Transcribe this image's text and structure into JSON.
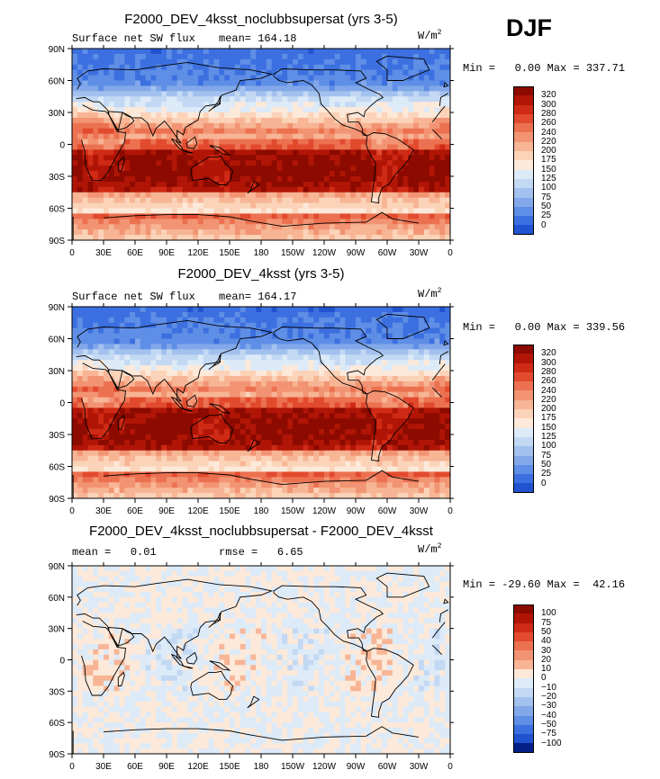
{
  "season": "DJF",
  "colors": {
    "pos": [
      "#fde9d9",
      "#fbd3b8",
      "#f7b595",
      "#f29473",
      "#ec7150",
      "#e24a2e",
      "#cf2a15",
      "#b01506",
      "#8c0a00"
    ],
    "neg": [
      "#ddeaf8",
      "#c2d8f3",
      "#a3c1ee",
      "#82a8ea",
      "#5f8ee6",
      "#3c70e0",
      "#2153d1",
      "#1039b0",
      "#06208a"
    ],
    "coast": "#000000"
  },
  "chart_data": [
    {
      "type": "heatmap",
      "title": "F2000_DEV_4ksst_noclubbsupersat (yrs 3-5)",
      "field": "Surface net SW flux",
      "stat_label": "mean=",
      "stat_value": "164.18",
      "units": "W/m",
      "units_exp": "2",
      "min_label": "Min =",
      "min": "0.00",
      "max_label": "Max =",
      "max": "337.71",
      "xticks": [
        "0",
        "30E",
        "60E",
        "90E",
        "120E",
        "150E",
        "180",
        "150W",
        "120W",
        "90W",
        "60W",
        "30W",
        "0"
      ],
      "yticks": [
        "90N",
        "60N",
        "30N",
        "0",
        "30S",
        "60S",
        "90S"
      ],
      "cbar_levels": [
        "320",
        "300",
        "280",
        "260",
        "240",
        "220",
        "200",
        "175",
        "150",
        "125",
        "100",
        "75",
        "50",
        "25",
        "0"
      ],
      "cbar_colors": [
        "#8c0a00",
        "#b01506",
        "#cf2a15",
        "#e24a2e",
        "#ec7150",
        "#f29473",
        "#f7b595",
        "#fbd3b8",
        "#fde9d9",
        "#ddeaf8",
        "#c2d8f3",
        "#a3c1ee",
        "#82a8ea",
        "#5f8ee6",
        "#3c70e0",
        "#2153d1"
      ],
      "field_kind": "sw",
      "seed": 1
    },
    {
      "type": "heatmap",
      "title": "F2000_DEV_4ksst (yrs 3-5)",
      "field": "Surface net SW flux",
      "stat_label": "mean=",
      "stat_value": "164.17",
      "units": "W/m",
      "units_exp": "2",
      "min_label": "Min =",
      "min": "0.00",
      "max_label": "Max =",
      "max": "339.56",
      "xticks": [
        "0",
        "30E",
        "60E",
        "90E",
        "120E",
        "150E",
        "180",
        "150W",
        "120W",
        "90W",
        "60W",
        "30W",
        "0"
      ],
      "yticks": [
        "90N",
        "60N",
        "30N",
        "0",
        "30S",
        "60S",
        "90S"
      ],
      "cbar_levels": [
        "320",
        "300",
        "280",
        "260",
        "240",
        "220",
        "200",
        "175",
        "150",
        "125",
        "100",
        "75",
        "50",
        "25",
        "0"
      ],
      "cbar_colors": [
        "#8c0a00",
        "#b01506",
        "#cf2a15",
        "#e24a2e",
        "#ec7150",
        "#f29473",
        "#f7b595",
        "#fbd3b8",
        "#fde9d9",
        "#ddeaf8",
        "#c2d8f3",
        "#a3c1ee",
        "#82a8ea",
        "#5f8ee6",
        "#3c70e0",
        "#2153d1"
      ],
      "field_kind": "sw",
      "seed": 2
    },
    {
      "type": "heatmap",
      "title": "F2000_DEV_4ksst_noclubbsupersat - F2000_DEV_4ksst",
      "field": "",
      "stat_label": "mean =",
      "stat_value": "0.01",
      "rmse_label": "rmse =",
      "rmse_value": "6.65",
      "units": "W/m",
      "units_exp": "2",
      "min_label": "Min =",
      "min": "-29.60",
      "max_label": "Max =",
      "max": "42.16",
      "xticks": [
        "0",
        "30E",
        "60E",
        "90E",
        "120E",
        "150E",
        "180",
        "150W",
        "120W",
        "90W",
        "60W",
        "30W",
        "0"
      ],
      "yticks": [
        "90N",
        "60N",
        "30N",
        "0",
        "30S",
        "60S",
        "90S"
      ],
      "cbar_levels": [
        "100",
        "75",
        "50",
        "40",
        "30",
        "20",
        "10",
        "0",
        "−10",
        "−20",
        "−30",
        "−40",
        "−50",
        "−75",
        "−100"
      ],
      "cbar_colors": [
        "#8c0a00",
        "#b01506",
        "#cf2a15",
        "#e24a2e",
        "#ec7150",
        "#f29473",
        "#f7b595",
        "#fde9d9",
        "#ddeaf8",
        "#c2d8f3",
        "#a3c1ee",
        "#82a8ea",
        "#5f8ee6",
        "#3c70e0",
        "#2153d1",
        "#06208a"
      ],
      "field_kind": "diff",
      "seed": 3
    }
  ]
}
